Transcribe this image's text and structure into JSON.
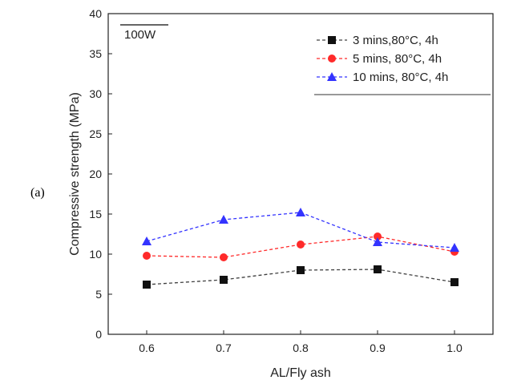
{
  "panel_label": "(a)",
  "chart_data": {
    "type": "line",
    "annotation": "100W",
    "xlabel": "AL/Fly ash",
    "ylabel": "Compressive strength (MPa)",
    "xlim": [
      0.55,
      1.05
    ],
    "ylim": [
      0,
      40
    ],
    "x": [
      0.6,
      0.7,
      0.8,
      0.9,
      1.0
    ],
    "x_tick_labels": [
      "0.6",
      "0.7",
      "0.8",
      "0.9",
      "1.0"
    ],
    "y_tick_labels": [
      "0",
      "5",
      "10",
      "15",
      "20",
      "25",
      "30",
      "35",
      "40"
    ],
    "grid": false,
    "legend_position": "top-right",
    "series": [
      {
        "name": "3 mins,80°C, 4h",
        "color": "#404040",
        "marker": "square",
        "values": [
          6.2,
          6.8,
          8.0,
          8.1,
          6.5
        ]
      },
      {
        "name": "5 mins, 80°C, 4h",
        "color": "#ff2a2a",
        "marker": "circle",
        "values": [
          9.8,
          9.6,
          11.2,
          12.2,
          10.3
        ]
      },
      {
        "name": "10 mins, 80°C, 4h",
        "color": "#3333ff",
        "marker": "triangle",
        "values": [
          11.6,
          14.3,
          15.2,
          11.5,
          10.8
        ]
      }
    ]
  }
}
